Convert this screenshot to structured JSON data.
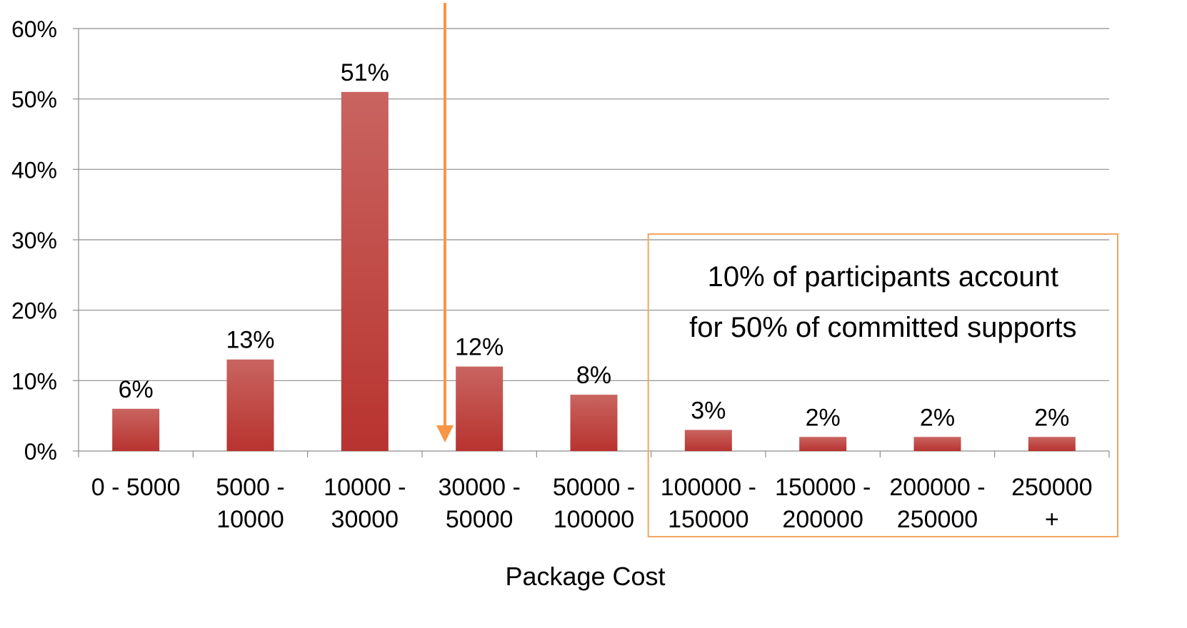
{
  "chart_data": {
    "type": "bar",
    "categories": [
      "0 - 5000",
      "5000 - 10000",
      "10000 - 30000",
      "30000 - 50000",
      "50000 - 100000",
      "100000 - 150000",
      "150000 - 200000",
      "200000 - 250000",
      "250000 +"
    ],
    "category_lines": [
      [
        "0 - 5000"
      ],
      [
        "5000 -",
        "10000"
      ],
      [
        "10000 -",
        "30000"
      ],
      [
        "30000 -",
        "50000"
      ],
      [
        "50000 -",
        "100000"
      ],
      [
        "100000 -",
        "150000"
      ],
      [
        "150000 -",
        "200000"
      ],
      [
        "200000 -",
        "250000"
      ],
      [
        "250000",
        "+"
      ]
    ],
    "values": [
      6,
      13,
      51,
      12,
      8,
      3,
      2,
      2,
      2
    ],
    "data_labels": [
      "6%",
      "13%",
      "51%",
      "12%",
      "8%",
      "3%",
      "2%",
      "2%",
      "2%"
    ],
    "xlabel": "Package Cost",
    "ylabel": "",
    "ylim": [
      0,
      60
    ],
    "yticks": [
      0,
      10,
      20,
      30,
      40,
      50,
      60
    ],
    "ytick_labels": [
      "0%",
      "10%",
      "20%",
      "30%",
      "40%",
      "50%",
      "60%"
    ],
    "grid": true,
    "bar_color": "#c0403c",
    "annotation": {
      "lines": [
        "10% of participants account",
        "for 50% of committed supports"
      ],
      "border_color": "#f4a460",
      "arrow_color": "#f79646",
      "arrow_after_category_index": 2,
      "box_from_category_index": 5
    }
  }
}
